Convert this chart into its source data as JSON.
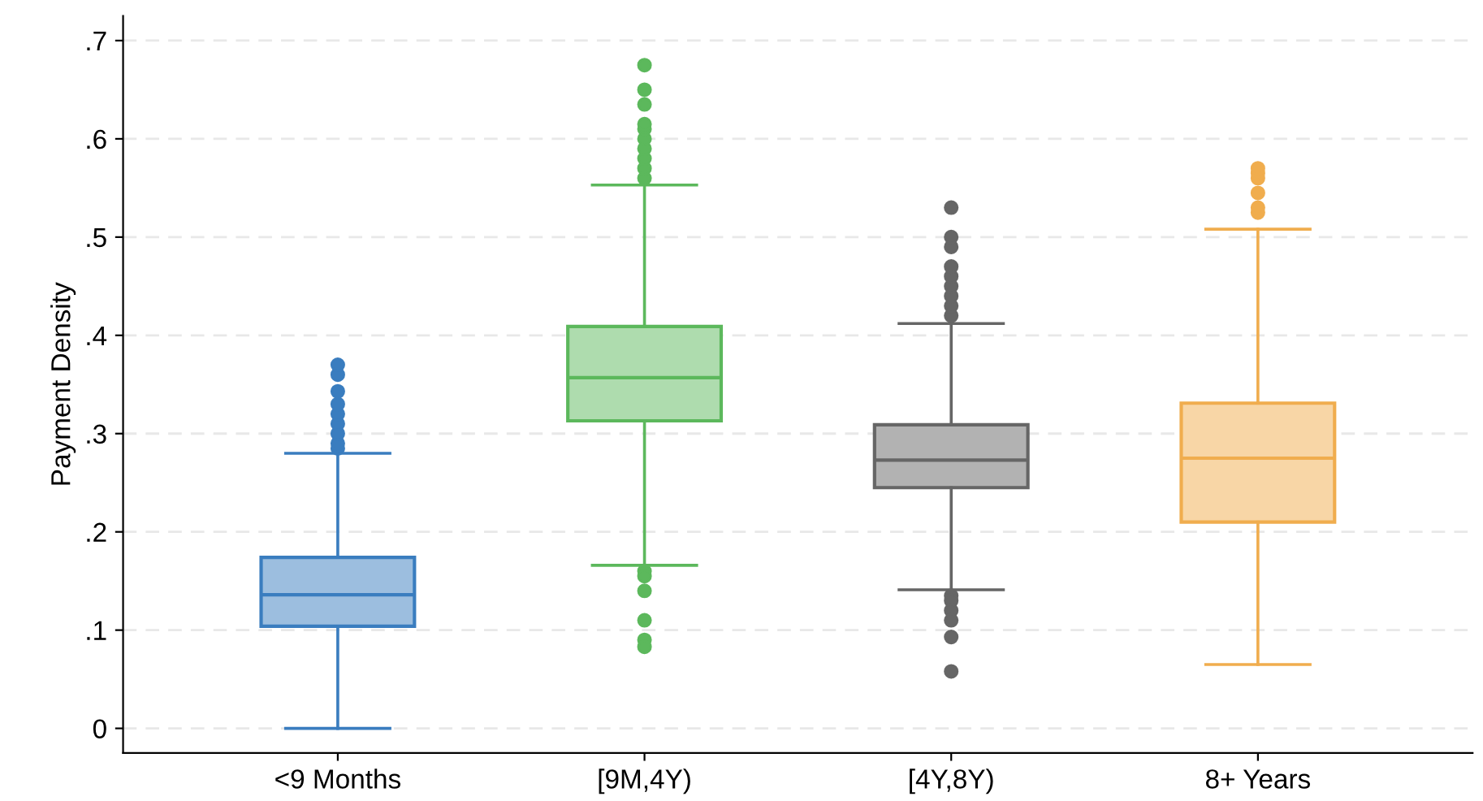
{
  "chart_data": {
    "type": "box",
    "ylabel": "Payment Density",
    "categories": [
      "<9 Months",
      "[9M,4Y)",
      "[4Y,8Y)",
      "8+ Years"
    ],
    "boxes": [
      {
        "low": 0,
        "q1": 0.104,
        "median": 0.136,
        "q3": 0.174,
        "high": 0.28,
        "outliers": [
          0.285,
          0.29,
          0.3,
          0.31,
          0.32,
          0.33,
          0.343,
          0.36,
          0.37
        ]
      },
      {
        "low": 0.166,
        "q1": 0.313,
        "median": 0.357,
        "q3": 0.409,
        "high": 0.553,
        "outliers": [
          0.56,
          0.57,
          0.58,
          0.59,
          0.6,
          0.61,
          0.615,
          0.635,
          0.65,
          0.675,
          0.16,
          0.155,
          0.14,
          0.11,
          0.09,
          0.083
        ]
      },
      {
        "low": 0.141,
        "q1": 0.245,
        "median": 0.273,
        "q3": 0.309,
        "high": 0.412,
        "outliers": [
          0.42,
          0.43,
          0.44,
          0.45,
          0.46,
          0.47,
          0.49,
          0.5,
          0.53,
          0.135,
          0.13,
          0.12,
          0.11,
          0.093,
          0.058
        ]
      },
      {
        "low": 0.065,
        "q1": 0.21,
        "median": 0.275,
        "q3": 0.331,
        "high": 0.508,
        "outliers": [
          0.525,
          0.53,
          0.545,
          0.56,
          0.565,
          0.57
        ]
      }
    ],
    "colors": [
      "#3a7dbf",
      "#5cb85c",
      "#666666",
      "#f0ad4e"
    ],
    "ylim": [
      -0.025,
      0.725
    ],
    "yticks": [
      0,
      {
        "value": 0.1,
        "label": ".1"
      },
      {
        "value": 0.2,
        "label": ".2"
      },
      {
        "value": 0.3,
        "label": ".3"
      },
      {
        "value": 0.4,
        "label": ".4"
      },
      {
        "value": 0.5,
        "label": ".5"
      },
      {
        "value": 0.6,
        "label": ".6"
      },
      {
        "value": 0.7,
        "label": ".7"
      }
    ],
    "grid": "y"
  }
}
